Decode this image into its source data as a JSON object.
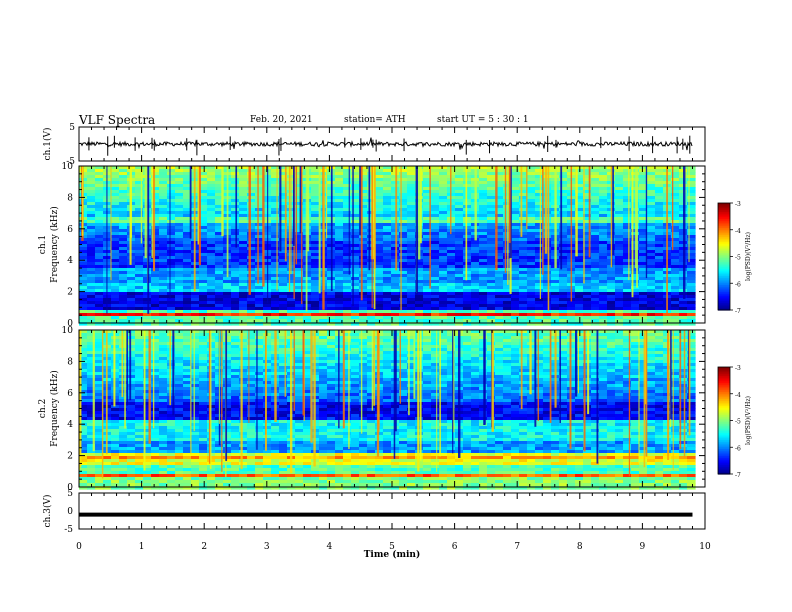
{
  "header": {
    "title": "VLF Spectra",
    "date": "Feb. 20, 2021",
    "station": "station= ATH",
    "start": "start  UT =   5  : 30 : 1"
  },
  "chart_data": [
    {
      "type": "line",
      "panel": "ch1-waveform",
      "ylabel": "ch.1(V)",
      "xlim": [
        0,
        10
      ],
      "ylim": [
        -5,
        5
      ],
      "yticks": [
        {
          "v": 5,
          "label": "5"
        },
        {
          "v": -5,
          "label": "-5"
        }
      ],
      "trace_level": 0,
      "trace_span_min": [
        0,
        9.8
      ],
      "color": "#000000"
    },
    {
      "type": "heatmap",
      "panel": "ch1-spectrogram",
      "ylabel_line1": "ch.1",
      "ylabel_line2": "Frequency  (kHz)",
      "xlim": [
        0,
        10
      ],
      "ylim": [
        0,
        10
      ],
      "yticks": [
        "0",
        "2",
        "4",
        "6",
        "8",
        "10"
      ],
      "data_span_min": [
        0,
        9.8
      ],
      "colorbar": {
        "label": "log(PSD)(V²/Hz)",
        "range": [
          -7,
          -3
        ],
        "ticks": [
          "-3",
          "-4",
          "-5",
          "-6",
          "-7"
        ]
      }
    },
    {
      "type": "heatmap",
      "panel": "ch2-spectrogram",
      "ylabel_line1": "ch.2",
      "ylabel_line2": "Frequency  (kHz)",
      "xlim": [
        0,
        10
      ],
      "ylim": [
        0,
        10
      ],
      "yticks": [
        "0",
        "2",
        "4",
        "6",
        "8",
        "10"
      ],
      "data_span_min": [
        0,
        9.8
      ],
      "colorbar": {
        "label": "log(PSD)(V²/Hz)",
        "range": [
          -7,
          -3
        ],
        "ticks": [
          "-3",
          "-4",
          "-5",
          "-6",
          "-7"
        ]
      }
    },
    {
      "type": "line",
      "panel": "ch3-waveform",
      "ylabel": "ch.3(V)",
      "xlabel": "Time  (min)",
      "xlim": [
        0,
        10
      ],
      "ylim": [
        -5,
        5
      ],
      "yticks": [
        {
          "v": 5,
          "label": "5"
        },
        {
          "v": 0,
          "label": "0"
        },
        {
          "v": -5,
          "label": "-5"
        }
      ],
      "xticks": [
        "0",
        "1",
        "2",
        "3",
        "4",
        "5",
        "6",
        "7",
        "8",
        "9",
        "10"
      ],
      "trace_level": -1,
      "trace_span_min": [
        0,
        9.8
      ],
      "color": "#000000"
    }
  ]
}
